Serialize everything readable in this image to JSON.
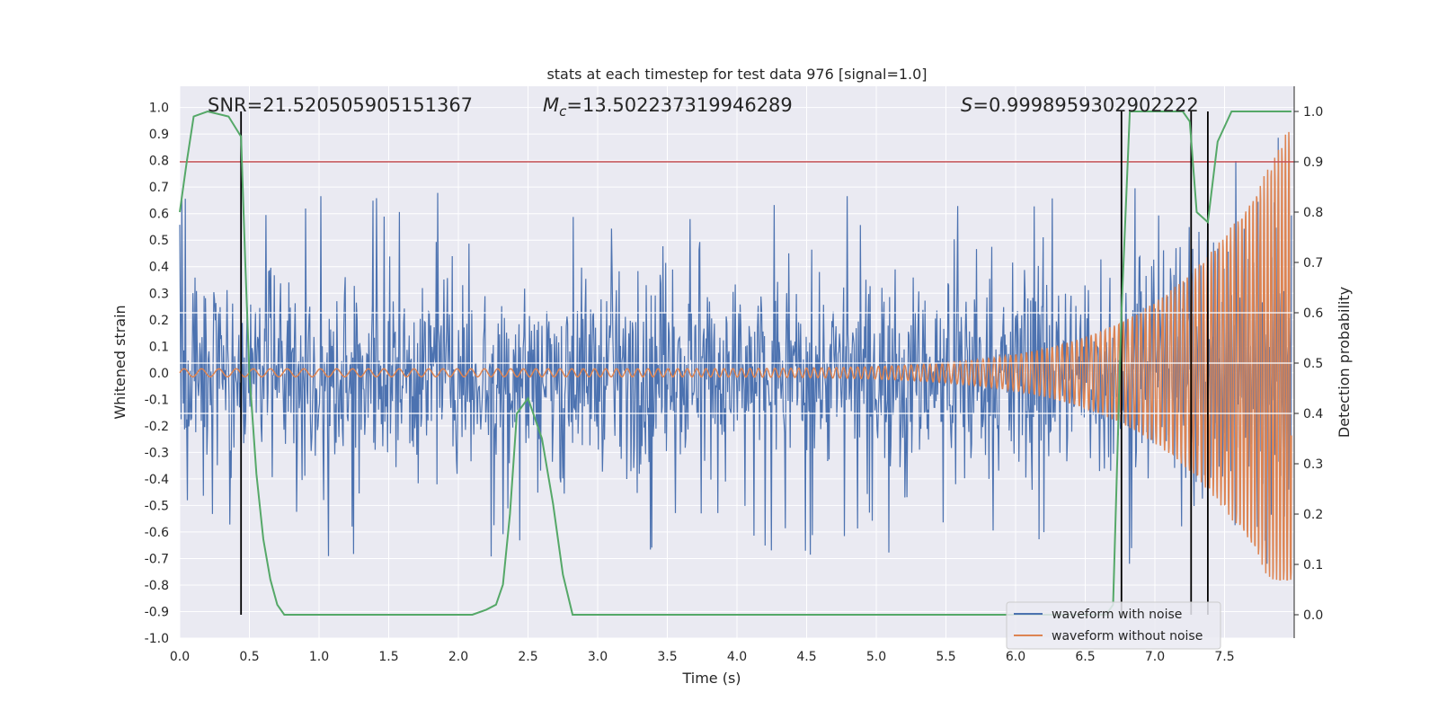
{
  "chart_data": {
    "type": "line",
    "title": "stats at each timestep for test data 976 [signal=1.0]",
    "xlabel": "Time (s)",
    "ylabel": "Whitened strain",
    "ylabel_right": "Detection probability",
    "xlim": [
      0.0,
      8.0
    ],
    "ylim": [
      -1.0,
      1.08
    ],
    "ylim_right": [
      0.0,
      1.0
    ],
    "x_ticks": [
      "0.0",
      "0.5",
      "1.0",
      "1.5",
      "2.0",
      "2.5",
      "3.0",
      "3.5",
      "4.0",
      "4.5",
      "5.0",
      "5.5",
      "6.0",
      "6.5",
      "7.0",
      "7.5"
    ],
    "y_ticks": [
      "-1.0",
      "-0.9",
      "-0.8",
      "-0.7",
      "-0.6",
      "-0.5",
      "-0.4",
      "-0.3",
      "-0.2",
      "-0.1",
      "0.0",
      "0.1",
      "0.2",
      "0.3",
      "0.4",
      "0.5",
      "0.6",
      "0.7",
      "0.8",
      "0.9",
      "1.0"
    ],
    "y_ticks_right": [
      "0.0",
      "0.1",
      "0.2",
      "0.3",
      "0.4",
      "0.5",
      "0.6",
      "0.7",
      "0.8",
      "0.9",
      "1.0"
    ],
    "annotations": {
      "snr": "SNR=21.520505905151367",
      "mc_symbol": "M",
      "mc_subscript": "c",
      "mc_value": "=13.502237319946289",
      "s_symbol": "S",
      "s_value": "=0.9998959302902222"
    },
    "threshold_right": 0.9,
    "vertical_markers_x": [
      0.44,
      6.76,
      7.26,
      7.38
    ],
    "series": [
      {
        "name": "waveform with noise",
        "color": "#4c72b0",
        "description_values": "whitened noisy strain, typical range -0.5 to 0.5, peaks up to 0.72 and down to -0.72"
      },
      {
        "name": "waveform without noise",
        "color": "#dd8452",
        "chirp": {
          "t_start": 0.0,
          "t_end": 7.98,
          "amp_start": 0.015,
          "amp_end": 0.95,
          "f_start": 8,
          "f_end": 40
        }
      },
      {
        "name": "detection probability",
        "axis": "right",
        "color": "#55a868",
        "x": [
          0.0,
          0.05,
          0.1,
          0.2,
          0.35,
          0.44,
          0.47,
          0.5,
          0.55,
          0.6,
          0.65,
          0.7,
          0.75,
          0.85,
          1.0,
          1.5,
          2.0,
          2.1,
          2.2,
          2.27,
          2.32,
          2.37,
          2.42,
          2.5,
          2.6,
          2.68,
          2.75,
          2.82,
          2.9,
          3.0,
          4.0,
          5.0,
          6.0,
          6.5,
          6.65,
          6.7,
          6.76,
          6.82,
          7.0,
          7.15,
          7.2,
          7.25,
          7.3,
          7.38,
          7.45,
          7.55,
          7.7,
          7.98
        ],
        "y": [
          0.8,
          0.9,
          0.99,
          1.0,
          0.99,
          0.95,
          0.7,
          0.48,
          0.28,
          0.15,
          0.07,
          0.02,
          0.0,
          0.0,
          0.0,
          0.0,
          0.0,
          0.0,
          0.01,
          0.02,
          0.06,
          0.2,
          0.4,
          0.43,
          0.35,
          0.22,
          0.08,
          0.0,
          0.0,
          0.0,
          0.0,
          0.0,
          0.0,
          0.0,
          0.0,
          0.02,
          0.6,
          1.0,
          1.0,
          1.0,
          1.0,
          0.98,
          0.8,
          0.78,
          0.94,
          1.0,
          1.0,
          1.0
        ]
      }
    ],
    "colors": {
      "background": "#eaeaf2",
      "grid": "#ffffff",
      "noisy": "#4c72b0",
      "clean": "#dd8452",
      "prob": "#55a868",
      "threshold": "#c44e52",
      "marker": "#000000"
    },
    "grid": true,
    "legend_position": "lower-right",
    "legend": [
      "waveform with noise",
      "waveform without noise"
    ]
  }
}
